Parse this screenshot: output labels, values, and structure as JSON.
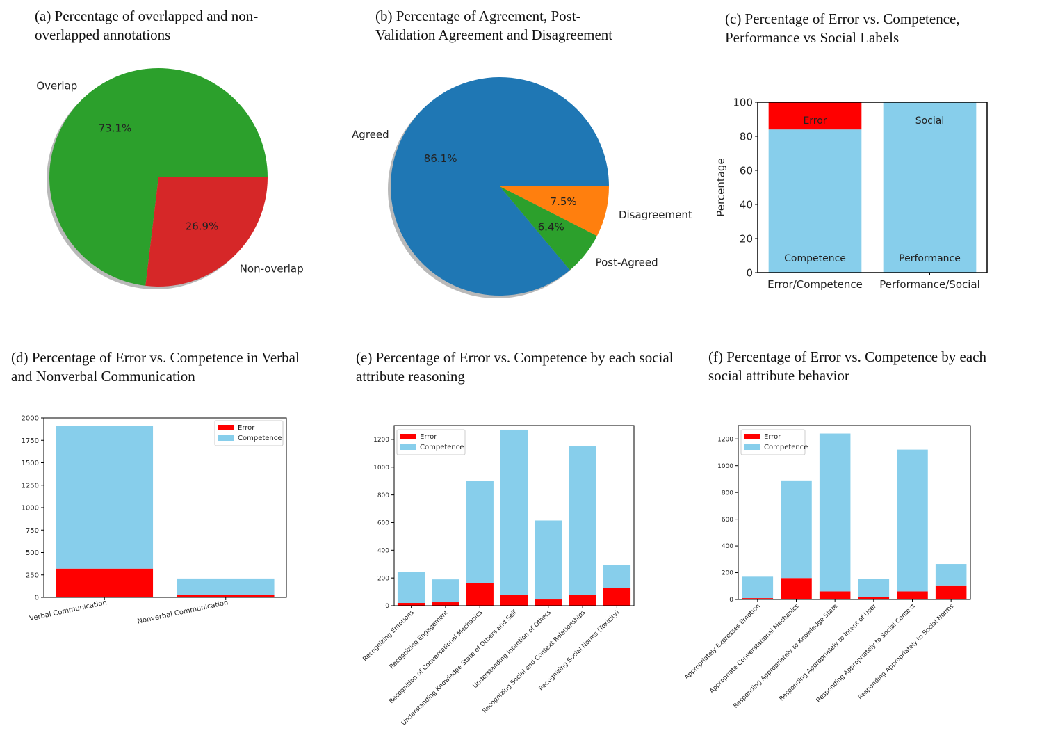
{
  "panels": {
    "a": {
      "caption_line1": "(a) Percentage of overlapped and non-",
      "caption_line2": "overlapped annotations"
    },
    "b": {
      "caption_line1": "(b) Percentage of Agreement, Post-",
      "caption_line2": "Validation Agreement and Disagreement"
    },
    "c": {
      "caption_line1": "(c) Percentage of Error vs. Competence,",
      "caption_line2": "Performance vs Social Labels"
    },
    "d": {
      "caption_line1": "(d) Percentage of Error vs. Competence in Verbal",
      "caption_line2": "and Nonverbal Communication"
    },
    "e": {
      "caption_line1": "(e) Percentage of Error vs. Competence by each social",
      "caption_line2": "attribute reasoning"
    },
    "f": {
      "caption_line1": "(f) Percentage of Error vs. Competence by each",
      "caption_line2": "social attribute behavior"
    }
  },
  "colors": {
    "green": "#2ca02c",
    "red_pie": "#d62728",
    "blue": "#1f77b4",
    "orange": "#ff7f0e",
    "error": "#ff0000",
    "competence": "#87ceeb"
  },
  "chart_data": [
    {
      "id": "a",
      "type": "pie",
      "labels": [
        "Overlap",
        "Non-overlap"
      ],
      "values": [
        73.1,
        26.9
      ],
      "pct_labels": [
        "73.1%",
        "26.9%"
      ],
      "colors": [
        "#2ca02c",
        "#d62728"
      ]
    },
    {
      "id": "b",
      "type": "pie",
      "labels": [
        "Agreed",
        "Post-Agreed",
        "Disagreement"
      ],
      "values": [
        86.1,
        6.4,
        7.5
      ],
      "pct_labels": [
        "86.1%",
        "6.4%",
        "7.5%"
      ],
      "colors": [
        "#1f77b4",
        "#2ca02c",
        "#ff7f0e"
      ]
    },
    {
      "id": "c",
      "type": "bar",
      "stacked": true,
      "categories": [
        "Error/Competence",
        "Performance/Social"
      ],
      "series": [
        {
          "name": "Competence/Performance",
          "values": [
            84,
            100
          ]
        },
        {
          "name": "Error/Social",
          "values": [
            16,
            0
          ]
        }
      ],
      "bar_labels": {
        "top": [
          "Error",
          "Social"
        ],
        "bottom": [
          "Competence",
          "Performance"
        ]
      },
      "ylabel": "Percentage",
      "ylim": [
        0,
        100
      ],
      "yticks": [
        0,
        20,
        40,
        60,
        80,
        100
      ]
    },
    {
      "id": "d",
      "type": "bar",
      "stacked": true,
      "categories": [
        "Verbal Communication",
        "Nonverbal Communication"
      ],
      "series": [
        {
          "name": "Error",
          "values": [
            320,
            25
          ]
        },
        {
          "name": "Competence",
          "values": [
            1590,
            185
          ]
        }
      ],
      "ylim": [
        0,
        2000
      ],
      "yticks": [
        0,
        250,
        500,
        750,
        1000,
        1250,
        1500,
        1750,
        2000
      ],
      "legend": "top-right"
    },
    {
      "id": "e",
      "type": "bar",
      "stacked": true,
      "categories": [
        "Recognizing Emotions",
        "Recognizing Engagement",
        "Recognition of Conversational Mechanics",
        "Understanding Knowledge State of Others and Self",
        "Understanding Intention of Others",
        "Recognizing Social and Context Relationships",
        "Recognizing Social Norms (Toxicity)"
      ],
      "series": [
        {
          "name": "Error",
          "values": [
            20,
            25,
            165,
            80,
            45,
            80,
            130
          ]
        },
        {
          "name": "Competence",
          "values": [
            225,
            165,
            735,
            1190,
            570,
            1070,
            165
          ]
        }
      ],
      "ylim": [
        0,
        1300
      ],
      "yticks": [
        0,
        200,
        400,
        600,
        800,
        1000,
        1200
      ],
      "legend": "top-left"
    },
    {
      "id": "f",
      "type": "bar",
      "stacked": true,
      "categories": [
        "Appropriately Expresses Emotion",
        "Appropriate Converstational Mechanics",
        "Responding Appropriately to Knowledge State",
        "Responding Appropriately to Intent of User",
        "Responding Appropriately to Social Context",
        "Responding Appropriately to Social Norms"
      ],
      "series": [
        {
          "name": "Error",
          "values": [
            10,
            160,
            60,
            20,
            60,
            105
          ]
        },
        {
          "name": "Competence",
          "values": [
            160,
            730,
            1180,
            135,
            1060,
            160
          ]
        }
      ],
      "ylim": [
        0,
        1300
      ],
      "yticks": [
        0,
        200,
        400,
        600,
        800,
        1000,
        1200
      ],
      "legend": "top-left"
    }
  ]
}
